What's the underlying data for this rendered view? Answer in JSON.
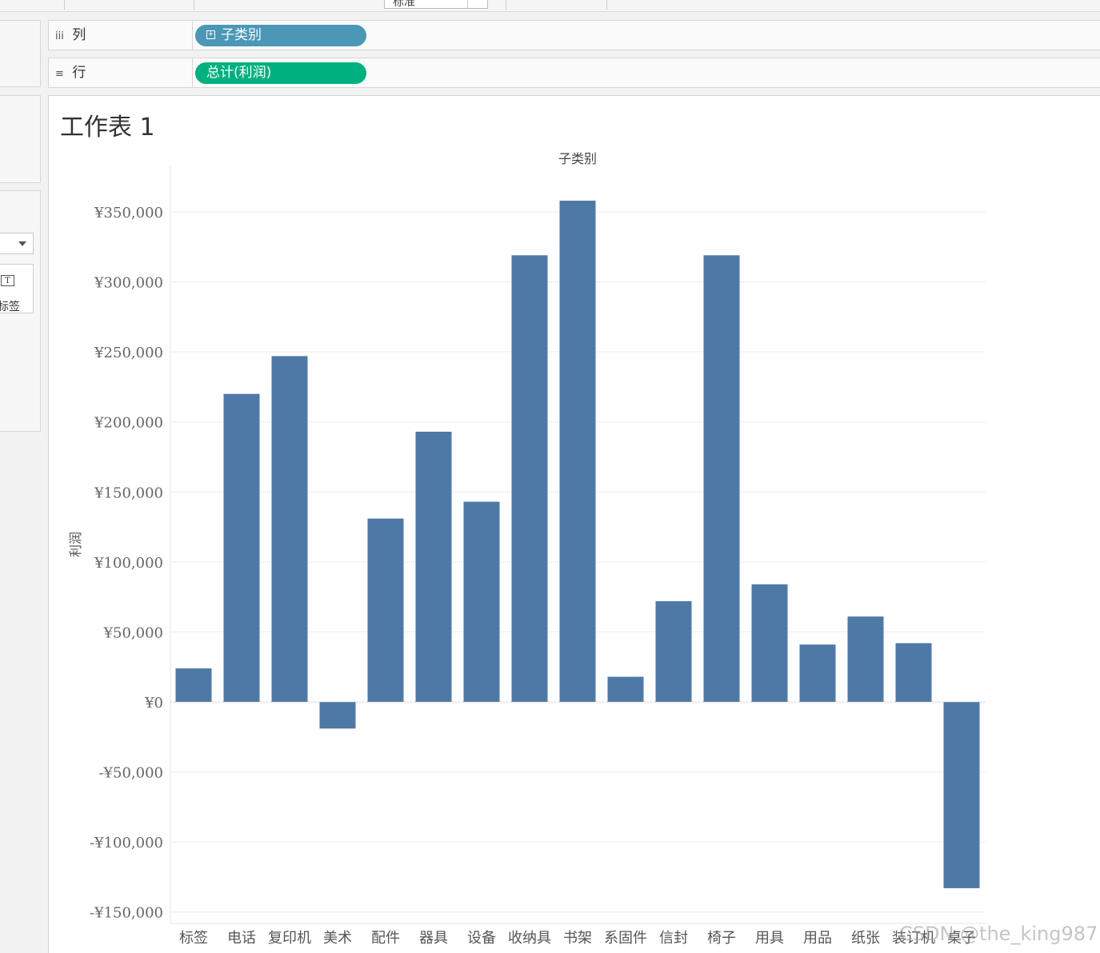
{
  "toolbar": {
    "format_box": "标准"
  },
  "shelves": {
    "columns": {
      "label": "列",
      "icon": "columns-icon",
      "pill": "子类别",
      "pill_color": "#4a97b6"
    },
    "rows": {
      "label": "行",
      "icon": "rows-icon",
      "pill": "总计(利润)",
      "pill_color": "#00b180"
    }
  },
  "marks_card": {
    "label_button": "标签"
  },
  "sheet": {
    "title": "工作表 1"
  },
  "chart_data": {
    "type": "bar",
    "title": "子类别",
    "ylabel": "利润",
    "xlabel": "",
    "bar_color": "#4e79a7",
    "ylim": [
      -150000,
      350000
    ],
    "y_ticks": [
      350000,
      300000,
      250000,
      200000,
      150000,
      100000,
      50000,
      0,
      -50000,
      -100000,
      -150000
    ],
    "y_tick_labels": [
      "¥350,000",
      "¥300,000",
      "¥250,000",
      "¥200,000",
      "¥150,000",
      "¥100,000",
      "¥50,000",
      "¥0",
      "-¥50,000",
      "-¥100,000",
      "-¥150,000"
    ],
    "categories": [
      "标签",
      "电话",
      "复印机",
      "美术",
      "配件",
      "器具",
      "设备",
      "收纳具",
      "书架",
      "系固件",
      "信封",
      "椅子",
      "用具",
      "用品",
      "纸张",
      "装订机",
      "桌子"
    ],
    "values": [
      24000,
      220000,
      247000,
      -19000,
      131000,
      193000,
      143000,
      319000,
      358000,
      18000,
      72000,
      319000,
      84000,
      41000,
      61000,
      42000,
      -133000
    ],
    "grid": true
  },
  "watermark": "CSDN @the_king987"
}
